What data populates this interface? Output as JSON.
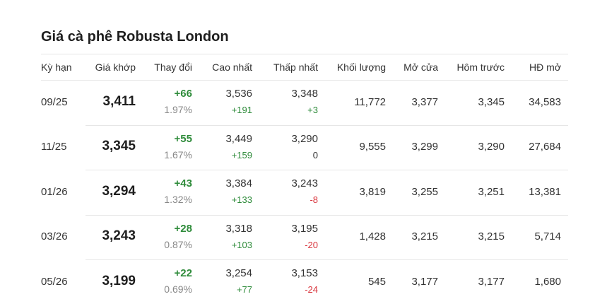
{
  "title": "Giá cà phê Robusta London",
  "headers": {
    "term": "Kỳ hạn",
    "price": "Giá khớp",
    "change": "Thay đổi",
    "high": "Cao nhất",
    "low": "Thấp nhất",
    "volume": "Khối lượng",
    "open": "Mở cửa",
    "prev": "Hôm trước",
    "oi": "HĐ mở"
  },
  "rows": [
    {
      "term": "09/25",
      "price": "3,411",
      "change": "+66",
      "pct": "1.97%",
      "high": "3,536",
      "high_chg": "+191",
      "high_dir": "up",
      "low": "3,348",
      "low_chg": "+3",
      "low_dir": "up",
      "volume": "11,772",
      "open": "3,377",
      "prev": "3,345",
      "oi": "34,583"
    },
    {
      "term": "11/25",
      "price": "3,345",
      "change": "+55",
      "pct": "1.67%",
      "high": "3,449",
      "high_chg": "+159",
      "high_dir": "up",
      "low": "3,290",
      "low_chg": "0",
      "low_dir": "flat",
      "volume": "9,555",
      "open": "3,299",
      "prev": "3,290",
      "oi": "27,684"
    },
    {
      "term": "01/26",
      "price": "3,294",
      "change": "+43",
      "pct": "1.32%",
      "high": "3,384",
      "high_chg": "+133",
      "high_dir": "up",
      "low": "3,243",
      "low_chg": "-8",
      "low_dir": "down",
      "volume": "3,819",
      "open": "3,255",
      "prev": "3,251",
      "oi": "13,381"
    },
    {
      "term": "03/26",
      "price": "3,243",
      "change": "+28",
      "pct": "0.87%",
      "high": "3,318",
      "high_chg": "+103",
      "high_dir": "up",
      "low": "3,195",
      "low_chg": "-20",
      "low_dir": "down",
      "volume": "1,428",
      "open": "3,215",
      "prev": "3,215",
      "oi": "5,714"
    },
    {
      "term": "05/26",
      "price": "3,199",
      "change": "+22",
      "pct": "0.69%",
      "high": "3,254",
      "high_chg": "+77",
      "high_dir": "up",
      "low": "3,153",
      "low_chg": "-24",
      "low_dir": "down",
      "volume": "545",
      "open": "3,177",
      "prev": "3,177",
      "oi": "1,680"
    }
  ]
}
